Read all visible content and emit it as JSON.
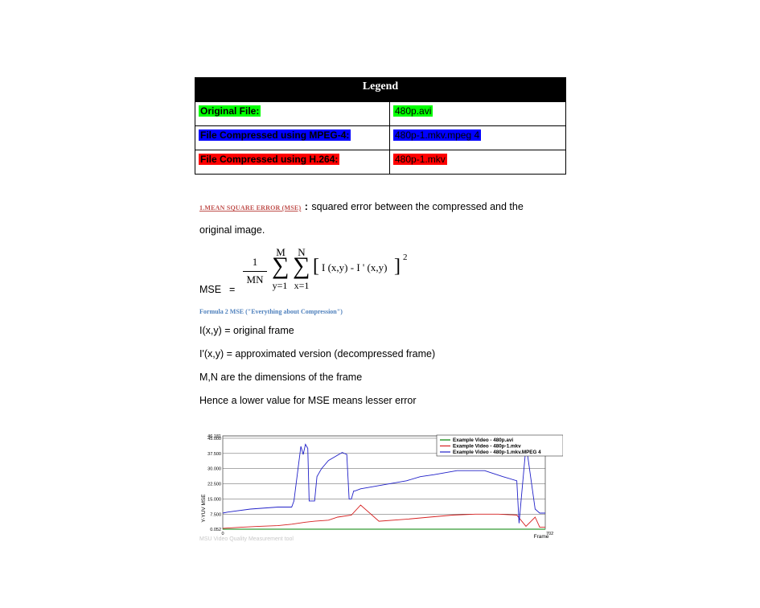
{
  "legend": {
    "title": "Legend",
    "rows": [
      {
        "label": "Original File:",
        "value": "480p.avi",
        "color": "#00ff00"
      },
      {
        "label": "File Compressed using MPEG-4:",
        "value": "480p-1.mkv.mpeg 4",
        "color": "#0000ff"
      },
      {
        "label": "File Compressed using H.264:",
        "value": "480p-1.mkv",
        "color": "#ff0000"
      }
    ]
  },
  "section": {
    "heading": "1.MEAN SQUARE ERROR (MSE)",
    "colon": ":",
    "desc_line1": "squared error between the compressed and the",
    "desc_line2": "original image."
  },
  "formula": {
    "lhs": "MSE",
    "eq": "=",
    "numerator": "1",
    "denominator": "MN",
    "sum_top1": "M",
    "sum_top2": "N",
    "sum_bot1": "y=1",
    "sum_bot2": "x=1",
    "body": "I (x,y) - I ' (x,y)",
    "exponent": "2",
    "caption": "Formula 2 MSE (\"Everything about Compression\")"
  },
  "definitions": [
    "I(x,y) = original frame",
    "I'(x,y) = approximated version (decompressed frame)",
    "M,N are the dimensions of the frame",
    "Hence a lower value for MSE means lesser error"
  ],
  "chart_data": {
    "type": "line",
    "ylabel": "Y-YUV MSE",
    "xlabel": "Frame",
    "xlim": [
      0,
      702
    ],
    "ylim": [
      0.052,
      46.181
    ],
    "y_ticks": [
      "46.181",
      "45.000",
      "37.500",
      "30.000",
      "22.500",
      "15.000",
      "7.500",
      "0.052"
    ],
    "x_ticks": [
      "0",
      "702"
    ],
    "watermark": "MSU Video Quality Measurement tool",
    "legend_position": "top-right",
    "series": [
      {
        "name": "Example Video - 480p.avi",
        "color": "#008000",
        "x": [
          0,
          702
        ],
        "y": [
          0.05,
          0.05
        ]
      },
      {
        "name": "Example Video - 480p-1.mkv",
        "color": "#d62020",
        "x": [
          0,
          40,
          80,
          120,
          150,
          180,
          200,
          230,
          250,
          280,
          300,
          340,
          400,
          450,
          500,
          550,
          600,
          640,
          660,
          680,
          690,
          702
        ],
        "y": [
          0.5,
          1,
          1.5,
          1.8,
          2.5,
          3.5,
          4,
          4.5,
          6,
          7,
          12,
          4,
          5,
          6,
          7,
          7.5,
          7.5,
          7,
          1.5,
          6,
          1,
          1
        ]
      },
      {
        "name": "Example Video - 480p-1.mkv.MPEG 4",
        "color": "#2020c8",
        "x": [
          0,
          10,
          60,
          120,
          150,
          155,
          170,
          175,
          180,
          185,
          188,
          200,
          205,
          215,
          230,
          260,
          270,
          275,
          280,
          285,
          288,
          300,
          350,
          400,
          430,
          460,
          510,
          570,
          610,
          640,
          645,
          660,
          662,
          680,
          690,
          702
        ],
        "y": [
          8,
          8.5,
          10,
          11,
          11,
          14,
          41,
          37,
          42,
          40,
          14,
          14,
          26,
          30,
          34,
          38,
          37,
          15,
          15,
          19,
          19,
          20,
          22,
          24,
          26,
          27,
          29,
          29,
          26,
          24,
          3,
          41,
          39,
          10,
          8,
          8
        ]
      }
    ]
  }
}
